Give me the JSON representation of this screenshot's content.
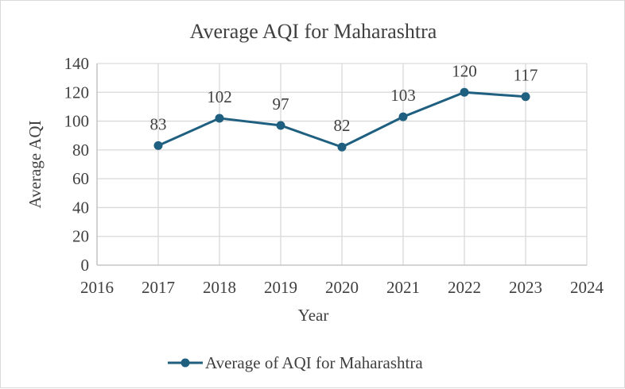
{
  "chart_data": {
    "type": "line",
    "title": "Average AQI for Maharashtra",
    "xlabel": "Year",
    "ylabel": "Average AQI",
    "xlim": [
      2016,
      2024
    ],
    "ylim": [
      0,
      140
    ],
    "xticks": [
      "2016",
      "2017",
      "2018",
      "2019",
      "2020",
      "2021",
      "2022",
      "2023",
      "2024"
    ],
    "yticks": [
      "0",
      "20",
      "40",
      "60",
      "80",
      "100",
      "120",
      "140"
    ],
    "grid": true,
    "legend_position": "bottom",
    "series": [
      {
        "name": "Average of AQI for Maharashtra",
        "color": "#1f5f80",
        "x": [
          2017,
          2018,
          2019,
          2020,
          2021,
          2022,
          2023
        ],
        "values": [
          83,
          102,
          97,
          82,
          103,
          120,
          117
        ],
        "labels": [
          "83",
          "102",
          "97",
          "82",
          "103",
          "120",
          "117"
        ]
      }
    ]
  }
}
